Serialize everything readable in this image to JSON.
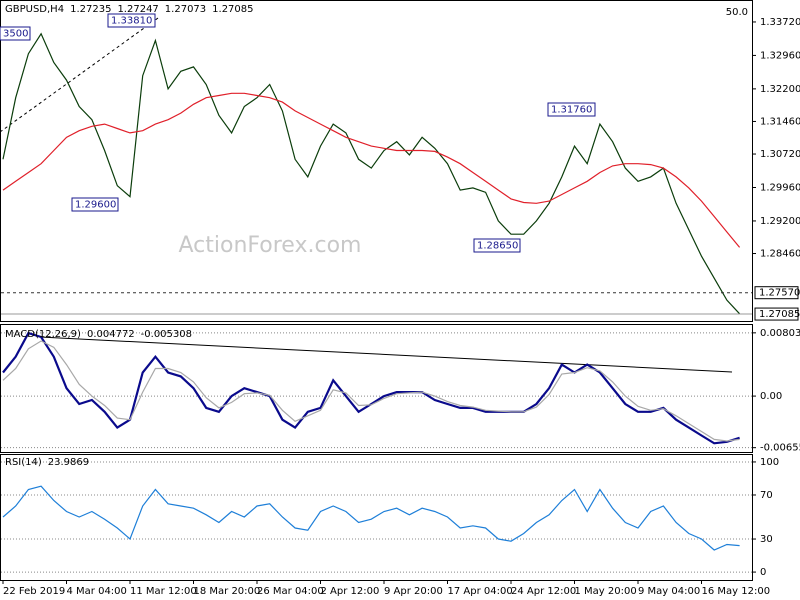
{
  "chart_data": [
    {
      "type": "line",
      "title": "GBPUSD,H4",
      "header_values": [
        1.27235,
        1.27247,
        1.27073,
        1.27085
      ],
      "corner_label": "50.0",
      "watermark": "ActionForex.com",
      "categories": [
        "22 Feb 2019",
        null,
        null,
        null,
        null,
        "4 Mar 04:00",
        null,
        null,
        null,
        null,
        "11 Mar 12:00",
        null,
        null,
        null,
        null,
        "18 Mar 20:00",
        null,
        null,
        null,
        null,
        "26 Mar 04:00",
        null,
        null,
        null,
        null,
        "2 Apr 12:00",
        null,
        null,
        null,
        null,
        "9 Apr 20:00",
        null,
        null,
        null,
        null,
        "17 Apr 04:00",
        null,
        null,
        null,
        null,
        "24 Apr 12:00",
        null,
        null,
        null,
        null,
        "1 May 20:00",
        null,
        null,
        null,
        null,
        "9 May 04:00",
        null,
        null,
        null,
        null,
        "16 May 12:00",
        null,
        null,
        null
      ],
      "series": [
        {
          "color": "#0b3d0b",
          "values": [
            1.306,
            1.32,
            1.33,
            1.3345,
            1.328,
            1.324,
            1.318,
            1.315,
            1.308,
            1.3,
            1.2975,
            1.325,
            1.333,
            1.322,
            1.326,
            1.327,
            1.323,
            1.316,
            1.312,
            1.318,
            1.32,
            1.323,
            1.317,
            1.306,
            1.302,
            1.309,
            1.314,
            1.312,
            1.306,
            1.304,
            1.308,
            1.31,
            1.307,
            1.311,
            1.3085,
            1.305,
            1.299,
            1.2995,
            1.2985,
            1.292,
            1.289,
            1.289,
            1.292,
            1.296,
            1.302,
            1.309,
            1.305,
            1.314,
            1.31,
            1.304,
            1.301,
            1.302,
            1.304,
            1.296,
            1.29,
            1.284,
            1.279,
            1.274,
            1.2709
          ]
        },
        {
          "color": "#e0202a",
          "values": [
            1.299,
            1.301,
            1.303,
            1.305,
            1.308,
            1.311,
            1.3125,
            1.3135,
            1.314,
            1.313,
            1.312,
            1.3125,
            1.314,
            1.315,
            1.3165,
            1.3185,
            1.32,
            1.3205,
            1.321,
            1.321,
            1.3205,
            1.32,
            1.319,
            1.317,
            1.3155,
            1.314,
            1.3125,
            1.311,
            1.31,
            1.309,
            1.3085,
            1.308,
            1.308,
            1.308,
            1.3078,
            1.3065,
            1.305,
            1.303,
            1.301,
            1.299,
            1.297,
            1.2962,
            1.296,
            1.2965,
            1.298,
            1.2995,
            1.301,
            1.303,
            1.3045,
            1.305,
            1.305,
            1.3048,
            1.304,
            1.302,
            1.2995,
            1.2965,
            1.293,
            1.2895,
            1.286
          ]
        }
      ],
      "ylim": [
        1.2695,
        1.3381
      ],
      "yticks": [
        {
          "value": 1.3372,
          "label": "1.33720"
        },
        {
          "value": 1.3296,
          "label": "1.32960"
        },
        {
          "value": 1.322,
          "label": "1.32200"
        },
        {
          "value": 1.3146,
          "label": "1.31460"
        },
        {
          "value": 1.3072,
          "label": "1.30720"
        },
        {
          "value": 1.2996,
          "label": "1.29960"
        },
        {
          "value": 1.292,
          "label": "1.29200"
        },
        {
          "value": 1.2846,
          "label": "1.28460"
        }
      ],
      "levels": [
        {
          "value": 1.2757,
          "label": "1.27570"
        },
        {
          "value": 1.27085,
          "label": "1.27085"
        }
      ],
      "annotations": [
        "3500",
        "1.33810",
        "1.29600",
        "1.28650",
        "1.31760"
      ]
    },
    {
      "type": "line",
      "title": "MACD(12,26,9)",
      "header_values": [
        0.004772,
        -0.005308
      ],
      "series": [
        {
          "color": "#0a0a8c",
          "values": [
            0.003,
            0.005,
            0.008,
            0.0075,
            0.005,
            0.001,
            -0.001,
            -0.0005,
            -0.002,
            -0.004,
            -0.003,
            0.003,
            0.005,
            0.003,
            0.0025,
            0.001,
            -0.0015,
            -0.002,
            0.0,
            0.001,
            0.0005,
            0.0,
            -0.003,
            -0.004,
            -0.002,
            -0.0015,
            0.002,
            0.0,
            -0.002,
            -0.001,
            0.0,
            0.0005,
            0.0005,
            0.0005,
            -0.0005,
            -0.001,
            -0.0015,
            -0.0015,
            -0.002,
            -0.002,
            -0.002,
            -0.002,
            -0.001,
            0.001,
            0.004,
            0.003,
            0.004,
            0.003,
            0.001,
            -0.001,
            -0.002,
            -0.002,
            -0.0015,
            -0.003,
            -0.004,
            -0.005,
            -0.006,
            -0.0058,
            -0.0053
          ]
        },
        {
          "color": "#a8a8a8",
          "values": [
            0.002,
            0.0035,
            0.006,
            0.007,
            0.0062,
            0.004,
            0.0015,
            0.0,
            -0.0012,
            -0.0028,
            -0.003,
            0.0005,
            0.0035,
            0.0035,
            0.003,
            0.0018,
            -0.0002,
            -0.0015,
            -0.0008,
            0.0003,
            0.0004,
            0.0001,
            -0.0018,
            -0.0032,
            -0.0025,
            -0.0018,
            0.0008,
            0.0004,
            -0.0012,
            -0.0011,
            -0.0003,
            0.0003,
            0.0004,
            0.0005,
            0.0,
            -0.0007,
            -0.0012,
            -0.0014,
            -0.0018,
            -0.0019,
            -0.002,
            -0.002,
            -0.0014,
            0.0002,
            0.0028,
            0.003,
            0.0036,
            0.0032,
            0.0018,
            0.0,
            -0.0013,
            -0.0018,
            -0.0016,
            -0.0025,
            -0.0035,
            -0.0045,
            -0.0055,
            -0.0057,
            -0.0055
          ]
        }
      ],
      "ylim": [
        -0.0071,
        0.0089
      ],
      "yticks": [
        0.008031,
        {
          "value": 0,
          "label": "0.00"
        },
        -0.00655
      ],
      "grid": true
    },
    {
      "type": "line",
      "title": "RSI(14)",
      "header_values": [
        23.9869
      ],
      "series": [
        {
          "color": "#1e7fd8",
          "values": [
            50,
            60,
            75,
            78,
            65,
            55,
            50,
            55,
            48,
            40,
            30,
            60,
            75,
            62,
            60,
            58,
            52,
            45,
            55,
            50,
            60,
            62,
            50,
            40,
            38,
            55,
            60,
            55,
            45,
            48,
            55,
            58,
            52,
            58,
            55,
            50,
            40,
            42,
            40,
            30,
            28,
            35,
            45,
            52,
            65,
            75,
            55,
            75,
            58,
            45,
            40,
            55,
            60,
            45,
            35,
            30,
            20,
            25,
            24
          ]
        }
      ],
      "ylim": [
        -7.2,
        105.4
      ],
      "yticks": [
        100,
        70,
        30,
        0
      ],
      "grid": true
    }
  ]
}
